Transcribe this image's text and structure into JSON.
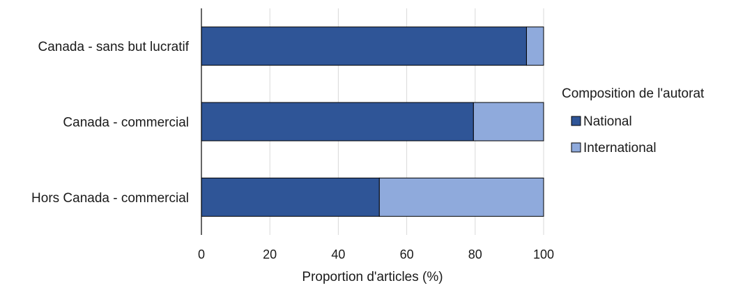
{
  "chart_data": {
    "type": "bar",
    "orientation": "horizontal",
    "stacked": true,
    "categories": [
      "Canada - sans but lucratif",
      "Canada - commercial",
      "Hors Canada - commercial"
    ],
    "series": [
      {
        "name": "National",
        "values": [
          95,
          79.5,
          52
        ],
        "color": "#2f5597"
      },
      {
        "name": "International",
        "values": [
          5,
          20.5,
          48
        ],
        "color": "#8faadc"
      }
    ],
    "xlabel": "Proportion d'articles (%)",
    "ylabel": "",
    "xlim": [
      0,
      100
    ],
    "xticks": [
      0,
      20,
      40,
      60,
      80,
      100
    ],
    "grid": "vertical",
    "legend": {
      "title": "Composition de l'autorat",
      "placement": "right"
    }
  }
}
